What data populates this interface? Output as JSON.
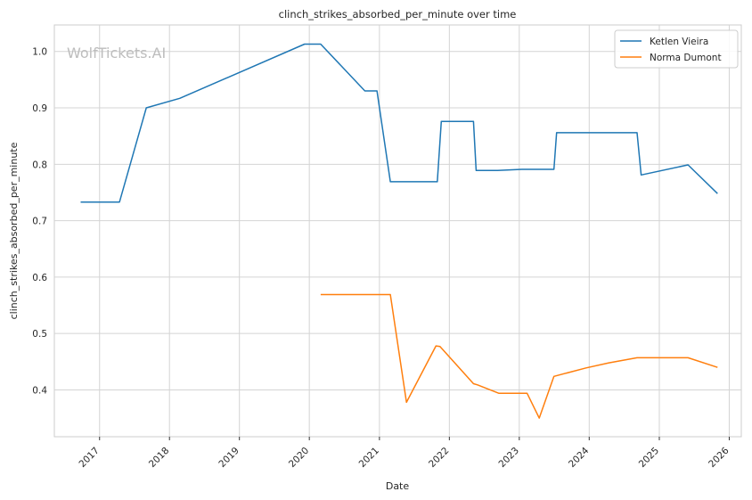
{
  "watermark": "WolfTickets.AI",
  "chart_data": {
    "type": "line",
    "title": "clinch_strikes_absorbed_per_minute over time",
    "xlabel": "Date",
    "ylabel": "clinch_strikes_absorbed_per_minute",
    "xlim": [
      "2016-05-10",
      "2026-03-05"
    ],
    "ylim": [
      0.317,
      1.047
    ],
    "x_ticks": [
      "2017",
      "2018",
      "2019",
      "2020",
      "2021",
      "2022",
      "2023",
      "2024",
      "2025",
      "2026"
    ],
    "y_ticks": [
      "0.4",
      "0.5",
      "0.6",
      "0.7",
      "0.8",
      "0.9",
      "1.0"
    ],
    "grid": true,
    "legend_position": "top-right",
    "series": [
      {
        "name": "Ketlen Vieira",
        "color": "#1f77b4",
        "points": [
          [
            "2016-09-24",
            0.733
          ],
          [
            "2017-04-15",
            0.733
          ],
          [
            "2017-09-02",
            0.9
          ],
          [
            "2018-02-24",
            0.917
          ],
          [
            "2019-12-07",
            1.013
          ],
          [
            "2020-02-29",
            1.013
          ],
          [
            "2020-10-17",
            0.93
          ],
          [
            "2020-12-19",
            0.93
          ],
          [
            "2021-02-27",
            0.769
          ],
          [
            "2021-10-30",
            0.769
          ],
          [
            "2021-11-20",
            0.876
          ],
          [
            "2022-05-07",
            0.876
          ],
          [
            "2022-05-21",
            0.789
          ],
          [
            "2022-09-10",
            0.789
          ],
          [
            "2023-01-14",
            0.791
          ],
          [
            "2023-07-01",
            0.791
          ],
          [
            "2023-07-15",
            0.856
          ],
          [
            "2024-09-07",
            0.856
          ],
          [
            "2024-09-28",
            0.781
          ],
          [
            "2025-05-31",
            0.799
          ],
          [
            "2025-11-01",
            0.748
          ]
        ]
      },
      {
        "name": "Norma Dumont",
        "color": "#ff7f0e",
        "points": [
          [
            "2020-02-29",
            0.569
          ],
          [
            "2021-02-27",
            0.569
          ],
          [
            "2021-05-22",
            0.378
          ],
          [
            "2021-10-23",
            0.478
          ],
          [
            "2021-11-13",
            0.477
          ],
          [
            "2022-05-07",
            0.411
          ],
          [
            "2022-05-28",
            0.409
          ],
          [
            "2022-09-17",
            0.394
          ],
          [
            "2023-02-11",
            0.394
          ],
          [
            "2023-04-15",
            0.35
          ],
          [
            "2023-07-01",
            0.424
          ],
          [
            "2023-12-16",
            0.439
          ],
          [
            "2024-04-13",
            0.448
          ],
          [
            "2024-09-07",
            0.457
          ],
          [
            "2025-05-31",
            0.457
          ],
          [
            "2025-11-01",
            0.44
          ]
        ]
      }
    ]
  }
}
